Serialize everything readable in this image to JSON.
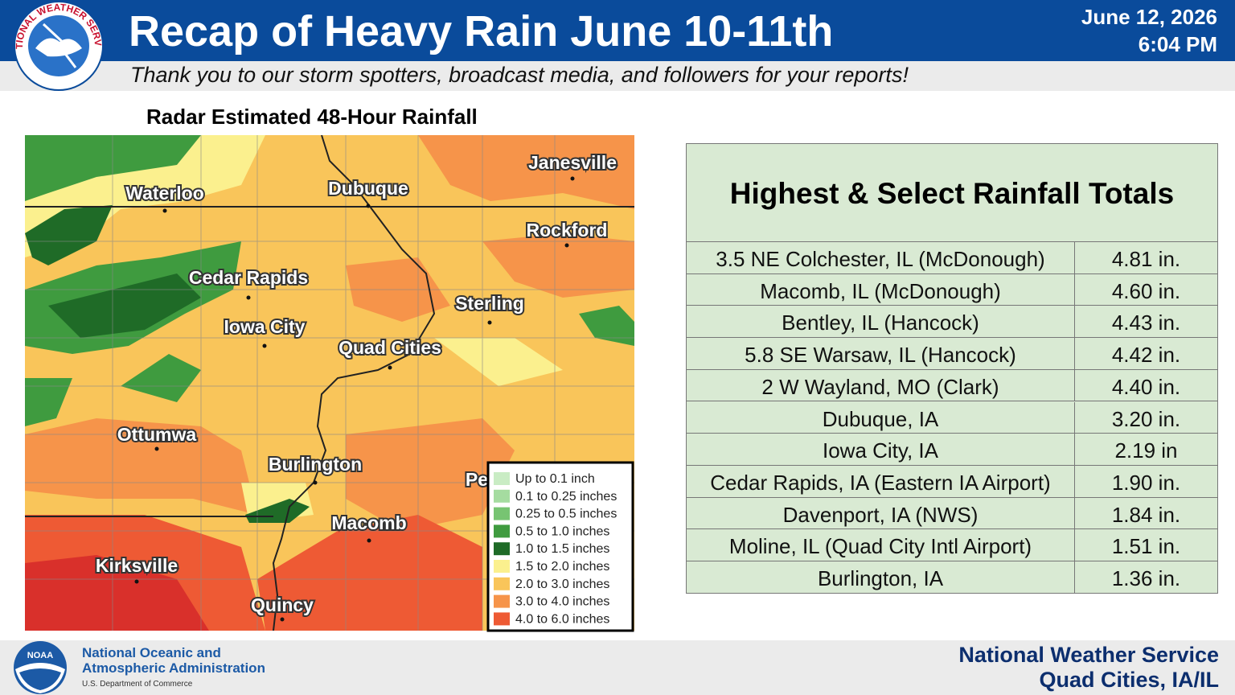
{
  "header": {
    "logo_text": "NATIONAL WEATHER SERVICE",
    "title": "Recap of Heavy Rain June 10-11th",
    "date": "June 12, 2026",
    "time": "6:04 PM",
    "subtitle": "Thank you to our storm spotters, broadcast media, and followers for your reports!"
  },
  "map": {
    "title": "Radar Estimated 48-Hour Rainfall",
    "cities": [
      "Waterloo",
      "Dubuque",
      "Janesville",
      "Rockford",
      "Cedar Rapids",
      "Iowa City",
      "Sterling",
      "Quad Cities",
      "Ottumwa",
      "Burlington",
      "Pe",
      "Macomb",
      "Kirksville",
      "Quincy"
    ],
    "legend": [
      {
        "label": "Up to 0.1 inch",
        "color": "#c9ecc4"
      },
      {
        "label": "0.1 to 0.25 inches",
        "color": "#a5dca0"
      },
      {
        "label": "0.25 to 0.5 inches",
        "color": "#77c472"
      },
      {
        "label": "0.5 to 1.0 inches",
        "color": "#3f9b3f"
      },
      {
        "label": "1.0 to 1.5 inches",
        "color": "#1f6b27"
      },
      {
        "label": "1.5 to 2.0 inches",
        "color": "#fbf08e"
      },
      {
        "label": "2.0 to 3.0 inches",
        "color": "#f9c55a"
      },
      {
        "label": "3.0 to 4.0 inches",
        "color": "#f6944a"
      },
      {
        "label": "4.0 to 6.0 inches",
        "color": "#ee5a34"
      }
    ]
  },
  "table": {
    "title": "Highest & Select Rainfall Totals",
    "rows": [
      [
        "3.5 NE Colchester, IL  (McDonough)",
        "4.81 in."
      ],
      [
        "Macomb, IL (McDonough)",
        "4.60 in."
      ],
      [
        "Bentley, IL (Hancock)",
        "4.43 in."
      ],
      [
        "5.8 SE Warsaw, IL (Hancock)",
        "4.42 in."
      ],
      [
        "2 W Wayland, MO (Clark)",
        "4.40 in."
      ],
      [
        "Dubuque, IA",
        "3.20 in."
      ],
      [
        "Iowa City, IA",
        "2.19 in"
      ],
      [
        "Cedar Rapids, IA (Eastern IA Airport)",
        "1.90 in."
      ],
      [
        "Davenport, IA (NWS)",
        "1.84 in."
      ],
      [
        "Moline, IL (Quad City Intl Airport)",
        "1.51 in."
      ],
      [
        "Burlington, IA",
        "1.36 in."
      ]
    ]
  },
  "footer": {
    "noaa_logo": "NOAA",
    "agency_line1": "National Oceanic and",
    "agency_line2": "Atmospheric Administration",
    "department": "U.S. Department of Commerce",
    "office_line1": "National Weather Service",
    "office_line2": "Quad Cities, IA/IL"
  }
}
